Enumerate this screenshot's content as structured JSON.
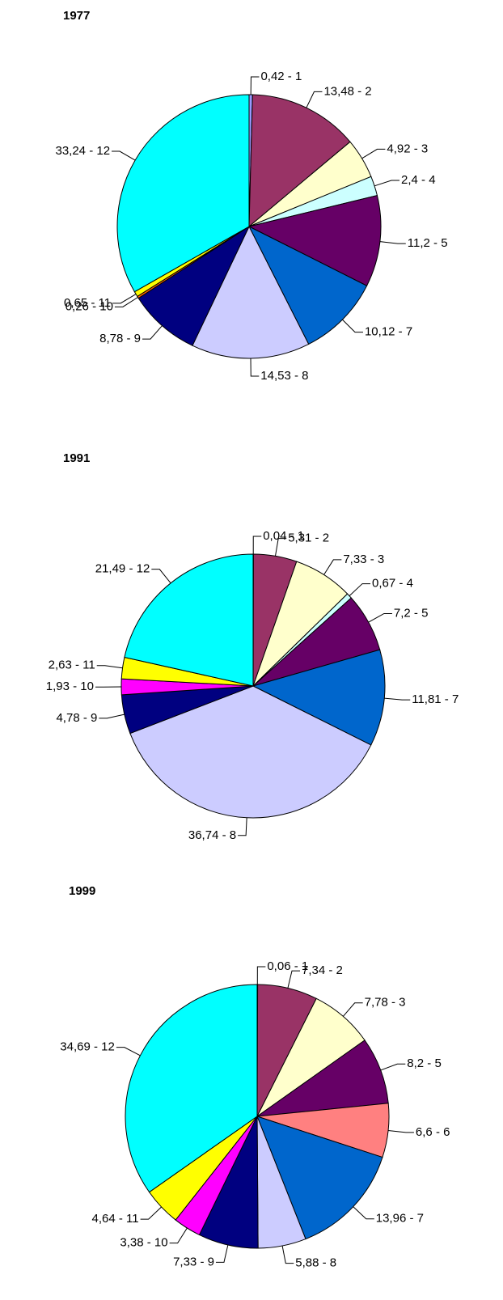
{
  "chart_data": [
    {
      "type": "pie",
      "title": "1977",
      "values": [
        0.42,
        13.48,
        4.92,
        2.4,
        11.2,
        10.12,
        14.53,
        8.78,
        0.26,
        0.65,
        33.24
      ],
      "value_labels": [
        "0,42 - 1",
        "13,48 - 2",
        "4,92 - 3",
        "2,4 - 4",
        "11,2 - 5",
        "10,12 - 7",
        "14,53 - 8",
        "8,78 - 9",
        "0,26 - 10",
        "0,65 - 11",
        "33,24 - 12"
      ],
      "colors": [
        "#9999ff",
        "#993366",
        "#ffffcc",
        "#ccffff",
        "#660066",
        "#0066cc",
        "#ccccff",
        "#000080",
        "#ff6600",
        "#ffff00",
        "#00ffff"
      ]
    },
    {
      "type": "pie",
      "title": "1991",
      "values": [
        0.04,
        5.31,
        7.33,
        0.67,
        7.2,
        11.81,
        36.74,
        4.78,
        1.93,
        2.63,
        21.49
      ],
      "value_labels": [
        "0,04 - 1",
        "5,31 - 2",
        "7,33 - 3",
        "0,67 - 4",
        "7,2 - 5",
        "11,81 - 7",
        "36,74 - 8",
        "4,78 - 9",
        "1,93 - 10",
        "2,63 - 11",
        "21,49 - 12"
      ],
      "colors": [
        "#9999ff",
        "#993366",
        "#ffffcc",
        "#ccffff",
        "#660066",
        "#0066cc",
        "#ccccff",
        "#000080",
        "#ff00ff",
        "#ffff00",
        "#00ffff"
      ]
    },
    {
      "type": "pie",
      "title": "1999",
      "values": [
        0.06,
        7.34,
        7.78,
        8.2,
        6.6,
        13.96,
        5.88,
        7.33,
        3.38,
        4.64,
        34.69
      ],
      "value_labels": [
        "0,06 - 1",
        "7,34 - 2",
        "7,78 - 3",
        "8,2 - 5",
        "6,6 - 6",
        "13,96 - 7",
        "5,88 - 8",
        "7,33 - 9",
        "3,38 - 10",
        "4,64 - 11",
        "34,69 - 12"
      ],
      "colors": [
        "#9999ff",
        "#993366",
        "#ffffcc",
        "#660066",
        "#ff8080",
        "#0066cc",
        "#ccccff",
        "#000080",
        "#ff00ff",
        "#ffff00",
        "#00ffff"
      ]
    }
  ]
}
